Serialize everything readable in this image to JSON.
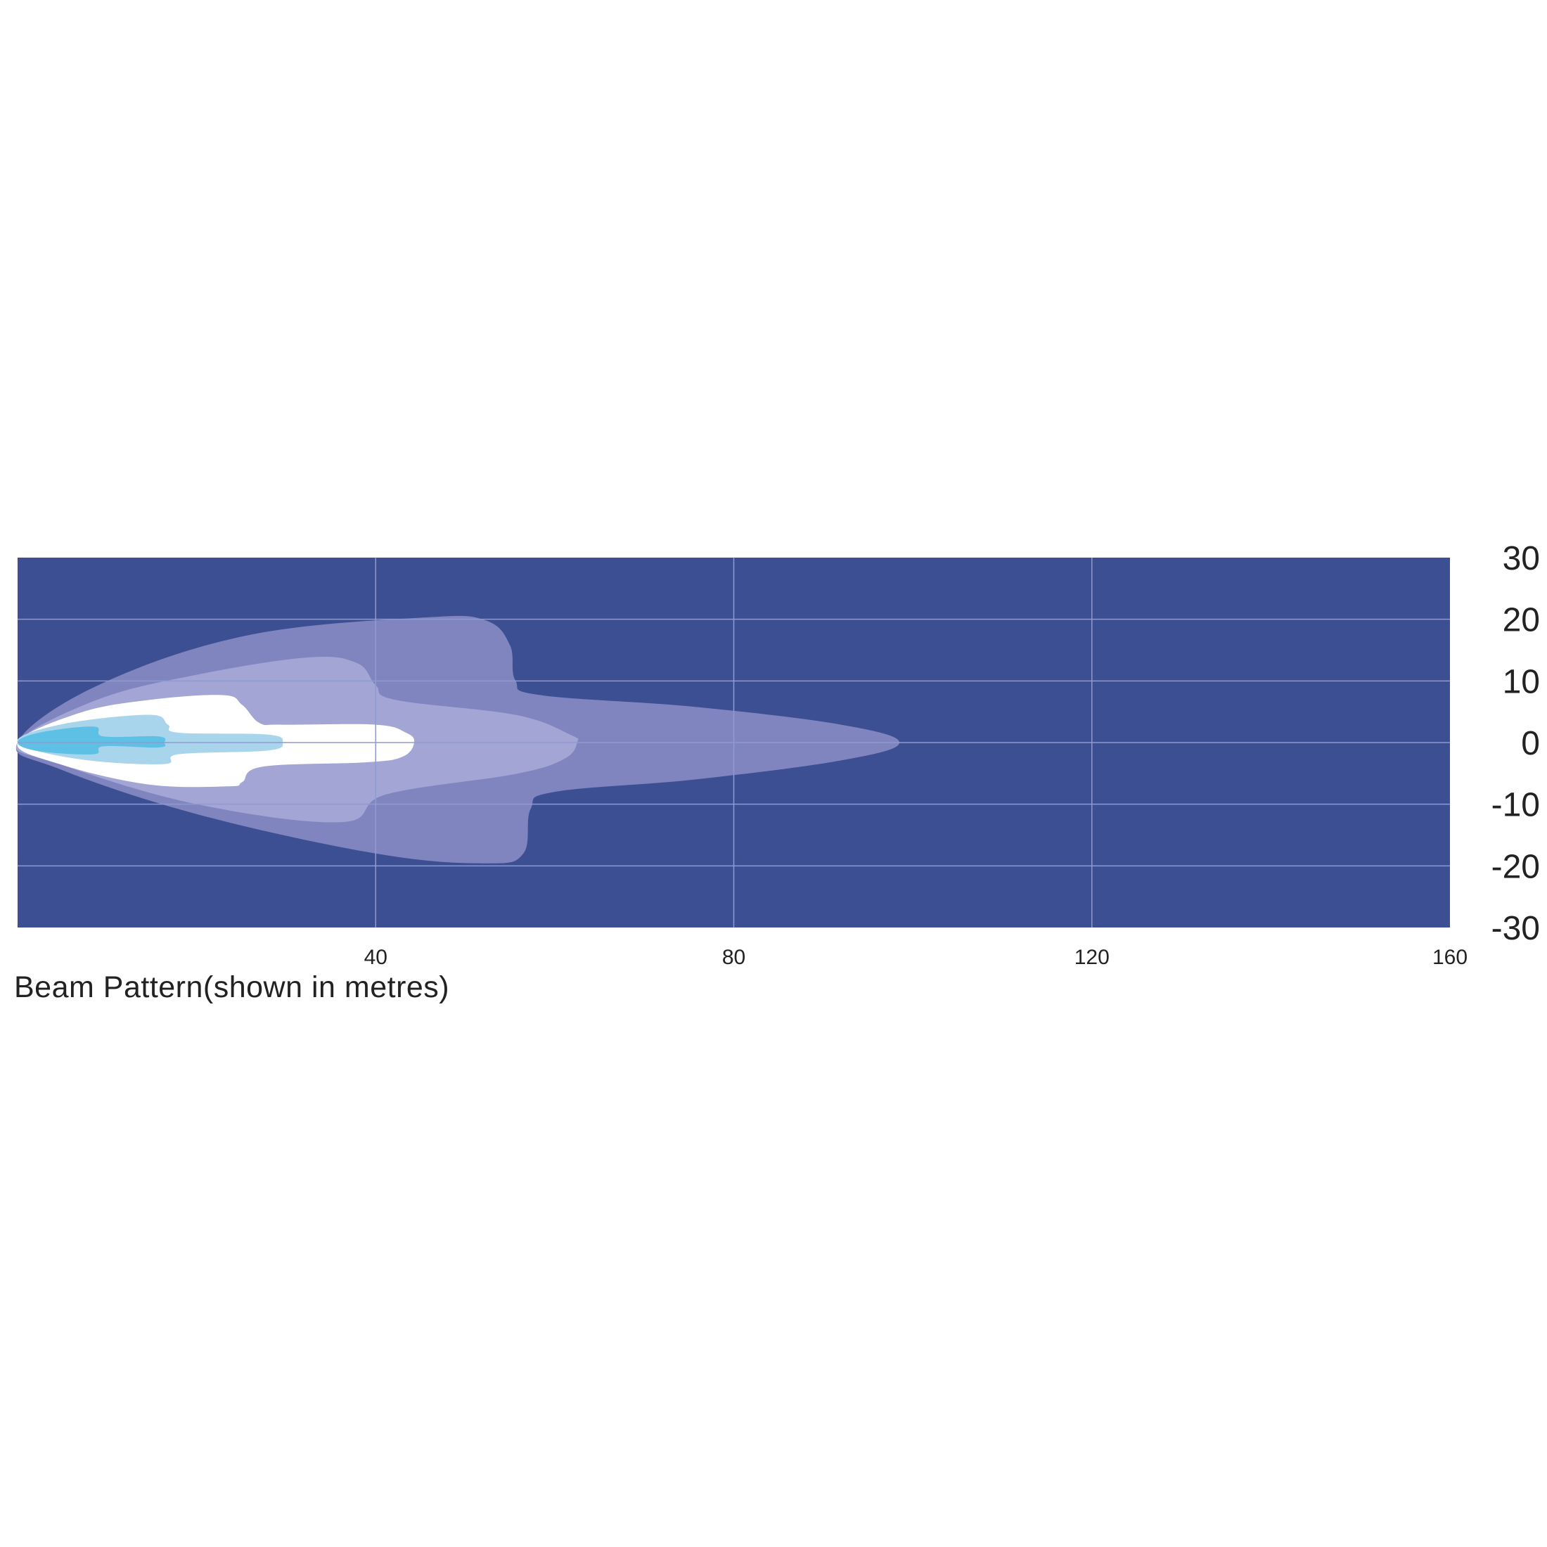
{
  "chart_data": {
    "type": "area",
    "title": "Beam Pattern(shown in metres)",
    "xlim": [
      0,
      160
    ],
    "ylim": [
      -30,
      30
    ],
    "x_ticks": [
      "40",
      "80",
      "120",
      "160"
    ],
    "x_tick_values": [
      40,
      80,
      120,
      160
    ],
    "y_ticks": [
      "30",
      "20",
      "10",
      "0",
      "-10",
      "-20",
      "-30"
    ],
    "y_tick_values": [
      30,
      20,
      10,
      0,
      -10,
      -20,
      -30
    ],
    "grid": true,
    "colors": {
      "background": "#3b4f92",
      "grid": "#8f9ad0",
      "text": "#222222"
    },
    "contours": [
      {
        "color": "#8085c0",
        "points": [
          [
            0,
            0
          ],
          [
            9,
            9.3
          ],
          [
            25.7,
            17.4
          ],
          [
            45.6,
            20.3
          ],
          [
            52.3,
            19.8
          ],
          [
            55,
            15.8
          ],
          [
            55.6,
            10.1
          ],
          [
            58.4,
            7.7
          ],
          [
            75.6,
            5.8
          ],
          [
            92,
            2.9
          ],
          [
            98.5,
            0
          ],
          [
            92,
            -2.9
          ],
          [
            75.6,
            -6
          ],
          [
            60,
            -8
          ],
          [
            57.3,
            -10.8
          ],
          [
            56.5,
            -18
          ],
          [
            52.3,
            -19.6
          ],
          [
            40,
            -18
          ],
          [
            20,
            -11.6
          ],
          [
            4.7,
            -4.3
          ]
        ]
      },
      {
        "color": "#a3a5d5",
        "points": [
          [
            0,
            0
          ],
          [
            9,
            7
          ],
          [
            20,
            11
          ],
          [
            32.4,
            13.8
          ],
          [
            37.9,
            12.9
          ],
          [
            40,
            9.3
          ],
          [
            42.3,
            6.9
          ],
          [
            55.6,
            4.5
          ],
          [
            61.7,
            1.3
          ],
          [
            62.5,
            0
          ],
          [
            61,
            -2.7
          ],
          [
            55.6,
            -5.1
          ],
          [
            41.2,
            -8.4
          ],
          [
            36.2,
            -12.9
          ],
          [
            20,
            -10
          ],
          [
            4.7,
            -3.5
          ]
        ]
      },
      {
        "color": "#ffffff",
        "points": [
          [
            0,
            0
          ],
          [
            6.9,
            4.8
          ],
          [
            14.6,
            6.9
          ],
          [
            22.9,
            7.7
          ],
          [
            25.1,
            6.1
          ],
          [
            27,
            3.2
          ],
          [
            29.6,
            2.9
          ],
          [
            40,
            2.9
          ],
          [
            43.4,
            1.6
          ],
          [
            44.3,
            0
          ],
          [
            43,
            -2.3
          ],
          [
            39,
            -3.2
          ],
          [
            27.4,
            -3.9
          ],
          [
            25.1,
            -6.4
          ],
          [
            23.5,
            -7.1
          ],
          [
            14.6,
            -6.8
          ],
          [
            4.7,
            -3.5
          ]
        ]
      },
      {
        "color": "#a8d4ec",
        "points": [
          [
            0,
            0
          ],
          [
            4.7,
            2.9
          ],
          [
            14.6,
            4.5
          ],
          [
            16.8,
            2.9
          ],
          [
            18,
            1.6
          ],
          [
            27.9,
            1.3
          ],
          [
            29.6,
            0
          ],
          [
            27.9,
            -1.3
          ],
          [
            18,
            -1.9
          ],
          [
            16.3,
            -3.5
          ],
          [
            6.9,
            -2.7
          ]
        ]
      },
      {
        "color": "#5ec0e4",
        "points": [
          [
            0,
            0
          ],
          [
            2.4,
            1.6
          ],
          [
            8.5,
            2.6
          ],
          [
            9.6,
            1
          ],
          [
            15.7,
            1
          ],
          [
            16.4,
            0
          ],
          [
            15.7,
            -0.8
          ],
          [
            9.6,
            -0.6
          ],
          [
            8.5,
            -1.9
          ],
          [
            2.4,
            -1.4
          ]
        ]
      }
    ]
  }
}
